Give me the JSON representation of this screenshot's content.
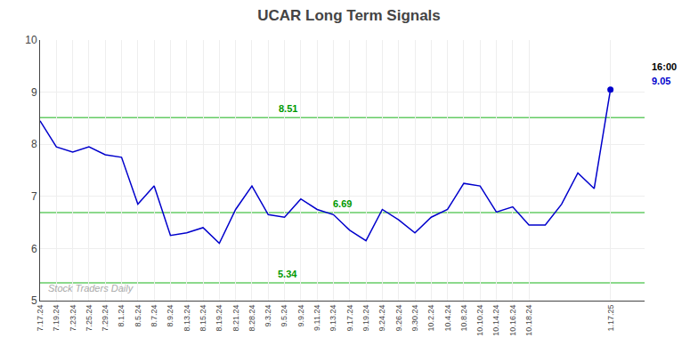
{
  "chart_data": {
    "type": "line",
    "title": "UCAR Long Term Signals",
    "categories": [
      "7.17.24",
      "7.19.24",
      "7.23.24",
      "7.25.24",
      "7.29.24",
      "8.1.24",
      "8.5.24",
      "8.7.24",
      "8.9.24",
      "8.13.24",
      "8.15.24",
      "8.19.24",
      "8.21.24",
      "8.28.24",
      "9.3.24",
      "9.5.24",
      "9.9.24",
      "9.11.24",
      "9.13.24",
      "9.17.24",
      "9.19.24",
      "9.24.24",
      "9.26.24",
      "9.30.24",
      "10.2.24",
      "10.4.24",
      "10.8.24",
      "10.10.24",
      "10.14.24",
      "10.16.24",
      "10.18.24",
      null,
      null,
      null,
      null,
      "1.17.25"
    ],
    "values": [
      8.45,
      7.95,
      7.85,
      7.95,
      7.8,
      7.75,
      6.85,
      7.2,
      6.25,
      6.3,
      6.4,
      6.1,
      6.75,
      7.2,
      6.65,
      6.6,
      6.95,
      6.75,
      6.65,
      6.35,
      6.15,
      6.75,
      6.55,
      6.3,
      6.6,
      6.75,
      7.25,
      7.2,
      6.7,
      6.8,
      6.45,
      6.45,
      6.85,
      7.45,
      7.15,
      9.05
    ],
    "color": "#0000cc",
    "ylim": [
      5.0,
      10.0
    ],
    "yticks": [
      5,
      6,
      7,
      8,
      9,
      10
    ],
    "grid": true,
    "hlines": [
      {
        "y": 8.51,
        "label": "8.51",
        "color": "#66cc66",
        "label_color": "#009900"
      },
      {
        "y": 6.69,
        "label": "6.69",
        "color": "#66cc66",
        "label_color": "#009900"
      },
      {
        "y": 5.34,
        "label": "5.34",
        "color": "#66cc66",
        "label_color": "#009900"
      }
    ],
    "annotations": [
      "16:00",
      "9.05"
    ],
    "watermark": {
      "text": "Stock Traders Daily",
      "color": "#aaaaaa"
    }
  }
}
